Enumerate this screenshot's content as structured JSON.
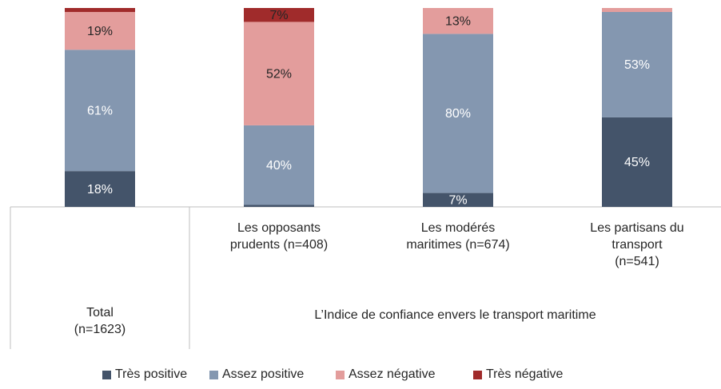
{
  "chart_data": {
    "type": "stacked_bar",
    "categories": [
      "Total\n(n=1623)",
      "Les opposants\nprudents (n=408)",
      "Les modérés\nmaritimes (n=674)",
      "Les partisans du\ntransport\n(n=541)"
    ],
    "group_label": "L’Indice de confiance envers le transport maritime",
    "ylim": [
      0,
      100
    ],
    "series": [
      {
        "name": "Très positive",
        "color": "#44546a",
        "label_color": "#ffffff",
        "values": [
          18,
          1,
          7,
          45
        ],
        "value_labels": [
          "18%",
          null,
          "7%",
          "45%"
        ]
      },
      {
        "name": "Assez positive",
        "color": "#8497b0",
        "label_color": "#ffffff",
        "values": [
          61,
          40,
          80,
          53
        ],
        "value_labels": [
          "61%",
          "40%",
          "80%",
          "53%"
        ]
      },
      {
        "name": "Assez négative",
        "color": "#e39d9c",
        "label_color": "#262626",
        "values": [
          19,
          52,
          13,
          2
        ],
        "value_labels": [
          "19%",
          "52%",
          "13%",
          null
        ]
      },
      {
        "name": "Très négative",
        "color": "#a02b2b",
        "label_color": "#262626",
        "values": [
          2,
          7,
          0,
          0
        ],
        "value_labels": [
          null,
          "7%",
          null,
          null
        ]
      }
    ]
  }
}
